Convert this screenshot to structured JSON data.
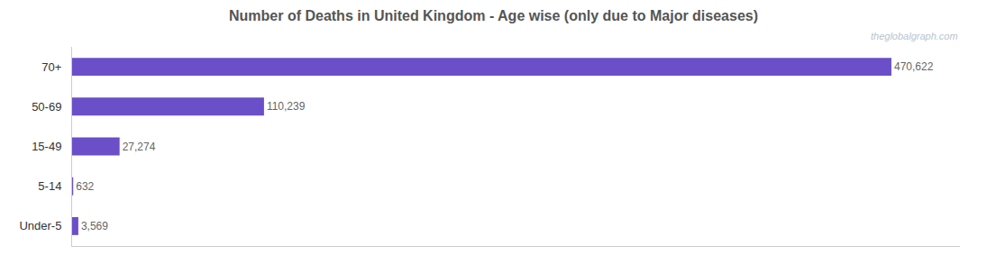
{
  "chart_data": {
    "type": "bar",
    "orientation": "horizontal",
    "title": "Number of Deaths in United Kingdom - Age wise (only due to Major diseases)",
    "annotations": [
      "theglobalgraph.com"
    ],
    "categories": [
      "70+",
      "50-69",
      "15-49",
      "5-14",
      "Under-5"
    ],
    "values": [
      470622,
      110239,
      27274,
      632,
      3569
    ],
    "value_labels": [
      "470,622",
      "110,239",
      "27,274",
      "632",
      "3,569"
    ],
    "data_labels": true,
    "color": "#6A4FC8",
    "xlim": [
      0,
      510000
    ],
    "tick_labels": "y",
    "grid": false
  }
}
